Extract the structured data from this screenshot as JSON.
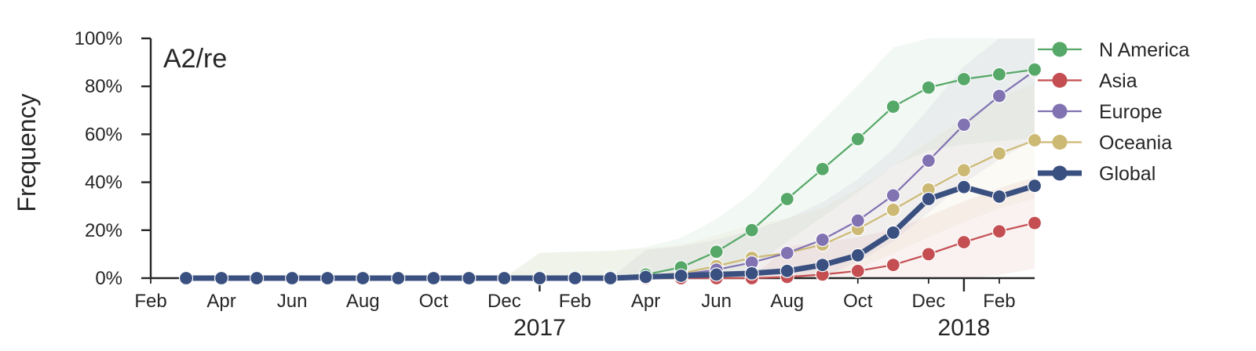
{
  "chart_data": {
    "type": "line",
    "title": "A2/re",
    "ylabel": "Frequency",
    "xlabel": "",
    "ylim": [
      0,
      100
    ],
    "y_ticks": [
      "0%",
      "20%",
      "40%",
      "60%",
      "80%",
      "100%"
    ],
    "x_range": [
      "2016-02",
      "2018-03"
    ],
    "x_ticks": [
      {
        "date": "2016-02",
        "label": "Feb"
      },
      {
        "date": "2016-04",
        "label": "Apr"
      },
      {
        "date": "2016-06",
        "label": "Jun"
      },
      {
        "date": "2016-08",
        "label": "Aug"
      },
      {
        "date": "2016-10",
        "label": "Oct"
      },
      {
        "date": "2016-12",
        "label": "Dec"
      },
      {
        "date": "2017-02",
        "label": "Feb"
      },
      {
        "date": "2017-04",
        "label": "Apr"
      },
      {
        "date": "2017-06",
        "label": "Jun"
      },
      {
        "date": "2017-08",
        "label": "Aug"
      },
      {
        "date": "2017-10",
        "label": "Oct"
      },
      {
        "date": "2017-12",
        "label": "Dec"
      },
      {
        "date": "2018-02",
        "label": "Feb"
      }
    ],
    "year_ticks": [
      {
        "date": "2017-01",
        "label": "2017"
      },
      {
        "date": "2018-01",
        "label": "2018"
      }
    ],
    "x": [
      "2016-03",
      "2016-04",
      "2016-05",
      "2016-06",
      "2016-07",
      "2016-08",
      "2016-09",
      "2016-10",
      "2016-11",
      "2016-12",
      "2017-01",
      "2017-02",
      "2017-03",
      "2017-04",
      "2017-05",
      "2017-06",
      "2017-07",
      "2017-08",
      "2017-09",
      "2017-10",
      "2017-11",
      "2017-12",
      "2018-01",
      "2018-02",
      "2018-03"
    ],
    "series": [
      {
        "name": "N America",
        "color": "#55a868",
        "values": [
          0,
          0,
          0,
          0,
          0,
          0,
          0,
          0,
          0,
          0,
          0.5,
          0.5,
          0.5,
          1.5,
          4.5,
          11,
          20,
          33,
          45.5,
          58,
          71.5,
          79.5,
          83,
          85,
          87
        ]
      },
      {
        "name": "Asia",
        "color": "#c44e52",
        "values": [
          0,
          0,
          0,
          0,
          0,
          0,
          0,
          0,
          0,
          0,
          0,
          0,
          0,
          0,
          0,
          0,
          0,
          0.5,
          1.5,
          3,
          5.5,
          10,
          15,
          19.5,
          23
        ]
      },
      {
        "name": "Europe",
        "color": "#8172b2",
        "values": [
          0,
          0,
          0,
          0,
          0,
          0,
          0,
          0,
          0,
          0,
          0,
          0,
          0,
          0.5,
          1.5,
          3.5,
          6.5,
          10.5,
          16,
          24,
          34.5,
          49,
          64,
          76,
          86.5
        ]
      },
      {
        "name": "Oceania",
        "color": "#ccb974",
        "values": [
          0,
          0,
          0,
          0,
          0,
          0,
          0,
          0,
          0,
          0,
          0.5,
          0.5,
          0.5,
          1,
          2,
          5,
          8.5,
          10.5,
          14,
          20.5,
          28.5,
          37,
          45,
          52,
          57.5
        ]
      },
      {
        "name": "Global",
        "color": "#3a5080",
        "values": [
          0,
          0,
          0,
          0,
          0,
          0,
          0,
          0,
          0,
          0,
          0,
          0,
          0,
          0.5,
          1,
          1.5,
          2,
          3,
          5.5,
          9.5,
          19,
          33,
          38,
          34,
          38.5
        ]
      }
    ],
    "legend_position": "right",
    "grid": false
  }
}
